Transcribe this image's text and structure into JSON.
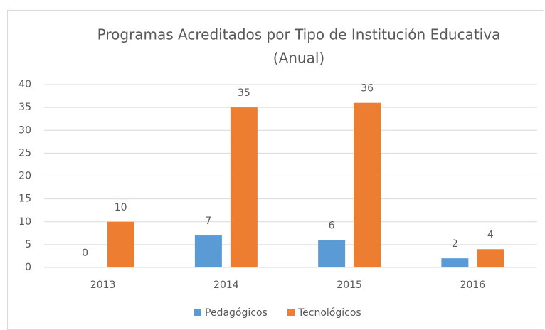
{
  "chart_data": {
    "type": "bar",
    "title": [
      "Programas Acreditados por Tipo de Institución Educativa",
      "(Anual)"
    ],
    "categories": [
      "2013",
      "2014",
      "2015",
      "2016"
    ],
    "series": [
      {
        "name": "Pedagógicos",
        "color": "#5b9bd5",
        "values": [
          0,
          7,
          6,
          2
        ]
      },
      {
        "name": "Tecnológicos",
        "color": "#ed7d31",
        "values": [
          10,
          35,
          36,
          4
        ]
      }
    ],
    "ylim": [
      0,
      40
    ],
    "yticks": [
      0,
      5,
      10,
      15,
      20,
      25,
      30,
      35,
      40
    ],
    "grid": true,
    "legend": "bottom"
  }
}
